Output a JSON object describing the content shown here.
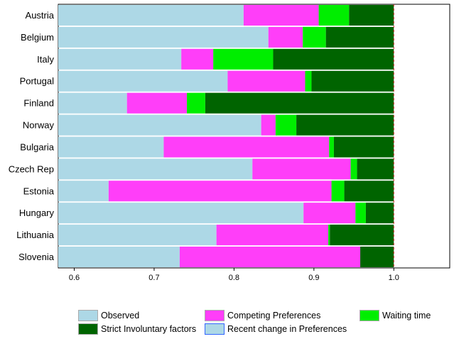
{
  "chart_data": {
    "type": "bar",
    "orientation": "horizontal",
    "stacked": true,
    "categories": [
      "Austria",
      "Belgium",
      "Italy",
      "Portugal",
      "Finland",
      "Norway",
      "Bulgaria",
      "Czech Rep",
      "Estonia",
      "Hungary",
      "Lithuania",
      "Slovenia"
    ],
    "xlim": [
      0.58,
      1.07
    ],
    "xticks": [
      0.6,
      0.7,
      0.8,
      0.9,
      1.0
    ],
    "xtick_labels": [
      "0.6",
      "0.7",
      "0.8",
      "0.9",
      "1.0"
    ],
    "reference_line": 1.0,
    "series": [
      {
        "name": "Observed",
        "color": "#add8e6",
        "end_values": [
          0.812,
          0.843,
          0.734,
          0.792,
          0.666,
          0.834,
          0.712,
          0.823,
          0.643,
          0.887,
          0.778,
          0.732
        ]
      },
      {
        "name": "Competing Preferences",
        "color": "#ff3ef9",
        "end_values": [
          0.906,
          0.886,
          0.774,
          0.889,
          0.741,
          0.852,
          0.919,
          0.946,
          0.922,
          0.952,
          0.918,
          0.958
        ]
      },
      {
        "name": "Waiting time",
        "color": "#00ee00",
        "end_values": [
          0.944,
          0.915,
          0.849,
          0.897,
          0.764,
          0.878,
          0.925,
          0.954,
          0.938,
          0.965,
          0.92,
          0.958
        ]
      },
      {
        "name": "Strict Involuntary factors",
        "color": "#006400",
        "end_values": [
          1.0,
          1.0,
          1.0,
          1.0,
          1.0,
          1.0,
          1.0,
          1.0,
          1.0,
          1.0,
          1.0,
          1.0
        ]
      },
      {
        "name": "Recent change in Preferences",
        "color": "#add8e6",
        "end_values": [
          null,
          null,
          null,
          null,
          null,
          null,
          null,
          null,
          null,
          null,
          null,
          null
        ]
      }
    ],
    "legend": [
      {
        "label": "Observed",
        "color": "#add8e6",
        "border": "#aaaaaa"
      },
      {
        "label": "Competing Preferences",
        "color": "#ff3ef9",
        "border": "#aaaaaa"
      },
      {
        "label": "Waiting time",
        "color": "#00ee00",
        "border": "#aaaaaa"
      },
      {
        "label": "Strict Involuntary factors",
        "color": "#006400",
        "border": "#aaaaaa"
      },
      {
        "label": "Recent change in Preferences",
        "color": "#add8e6",
        "border": "#3366ff"
      }
    ],
    "legend_position": "bottom",
    "title": "",
    "xlabel": "",
    "ylabel": ""
  }
}
